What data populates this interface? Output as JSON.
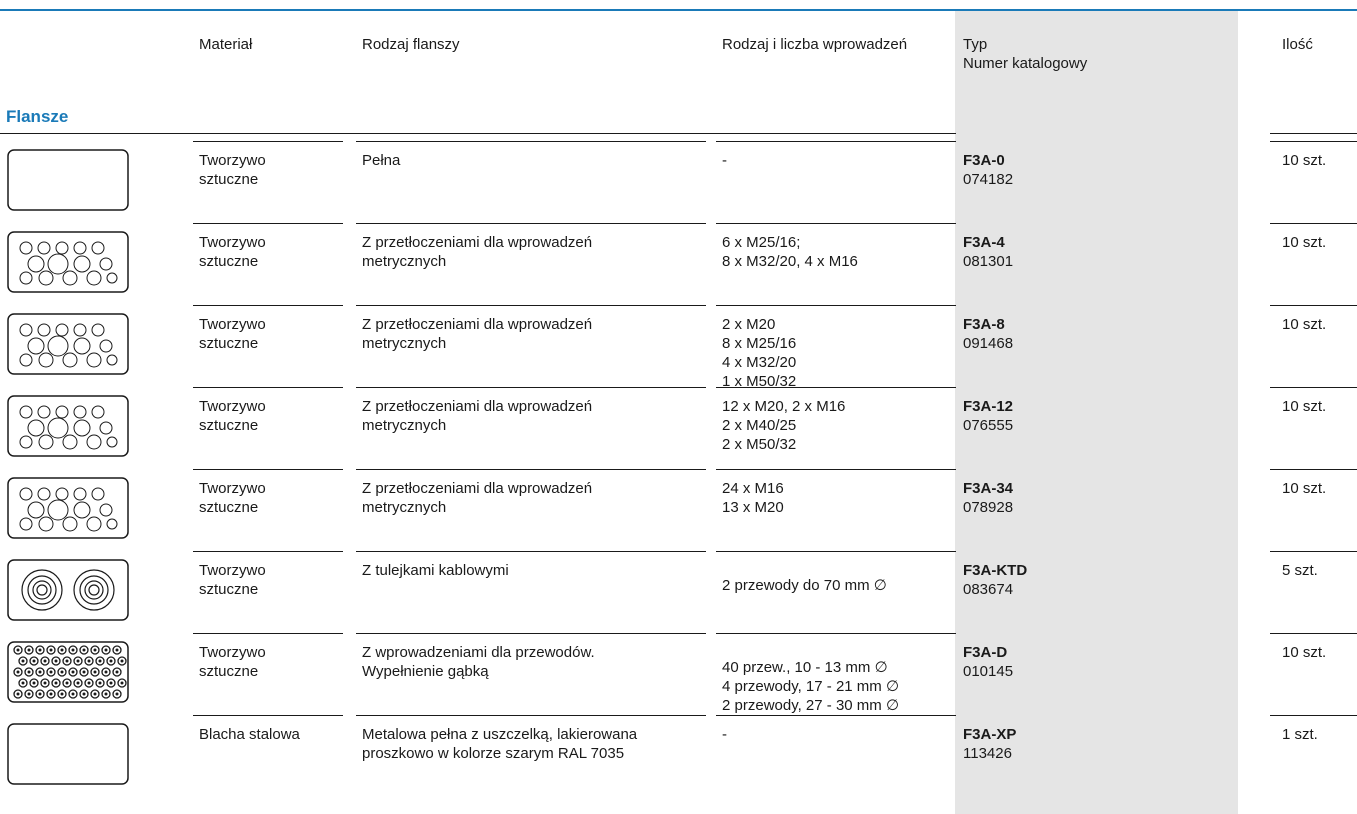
{
  "header": {
    "material": "Materiał",
    "flange_type": "Rodzaj flanszy",
    "entries": "Rodzaj i liczba wprowadzeń",
    "type_line1": "Typ",
    "type_line2": "Numer katalogowy",
    "qty": "Ilość"
  },
  "section_title": "Flansze",
  "rows": [
    {
      "material": "Tworzywo\nsztuczne",
      "flange": "Pełna",
      "entries": "-",
      "type": "F3A-0",
      "catalog": "074182",
      "qty": "10 szt.",
      "icon": "plain-flange-icon"
    },
    {
      "material": "Tworzywo\nsztuczne",
      "flange": "Z przetłoczeniami dla wprowadzeń\nmetrycznych",
      "entries": "6 x M25/16;\n8 x M32/20, 4 x M16",
      "type": "F3A-4",
      "catalog": "081301",
      "qty": "10 szt.",
      "icon": "knockout-flange-icon"
    },
    {
      "material": "Tworzywo\nsztuczne",
      "flange": "Z przetłoczeniami dla wprowadzeń\nmetrycznych",
      "entries": "2 x M20\n8 x M25/16\n4 x M32/20\n1 x M50/32",
      "type": "F3A-8",
      "catalog": "091468",
      "qty": "10 szt.",
      "icon": "knockout-flange-icon"
    },
    {
      "material": "Tworzywo\nsztuczne",
      "flange": "Z przetłoczeniami dla wprowadzeń\nmetrycznych",
      "entries": "12 x M20, 2 x M16\n2 x M40/25\n2 x M50/32",
      "type": "F3A-12",
      "catalog": "076555",
      "qty": "10 szt.",
      "icon": "knockout-flange-icon"
    },
    {
      "material": "Tworzywo\nsztuczne",
      "flange": "Z przetłoczeniami dla wprowadzeń\nmetrycznych",
      "entries": "24 x M16\n13 x M20",
      "type": "F3A-34",
      "catalog": "078928",
      "qty": "10 szt.",
      "icon": "knockout-flange-icon"
    },
    {
      "material": "Tworzywo\nsztuczne",
      "flange": "Z tulejkami kablowymi",
      "entries": "2 przewody do 70 mm ∅",
      "type": "F3A-KTD",
      "catalog": "083674",
      "qty": "5 szt.",
      "icon": "grommet-flange-icon"
    },
    {
      "material": "Tworzywo\nsztuczne",
      "flange": "Z wprowadzeniami dla przewodów.\nWypełnienie gąbką",
      "entries": "40 przew., 10 - 13 mm ∅\n4 przewody, 17 - 21 mm ∅\n2 przewody, 27 - 30 mm ∅",
      "type": "F3A-D",
      "catalog": "010145",
      "qty": "10 szt.",
      "icon": "sponge-flange-icon"
    },
    {
      "material": "Blacha stalowa",
      "flange": "Metalowa pełna z uszczelką, lakierowana\nproszkowo w kolorze szarym RAL 7035",
      "entries": "-",
      "type": "F3A-XP",
      "catalog": "113426",
      "qty": "1 szt.",
      "icon": "steel-flange-icon"
    }
  ],
  "colors": {
    "accent": "#1a7ab8",
    "shade": "#e5e5e5",
    "text": "#1a1a1a"
  }
}
